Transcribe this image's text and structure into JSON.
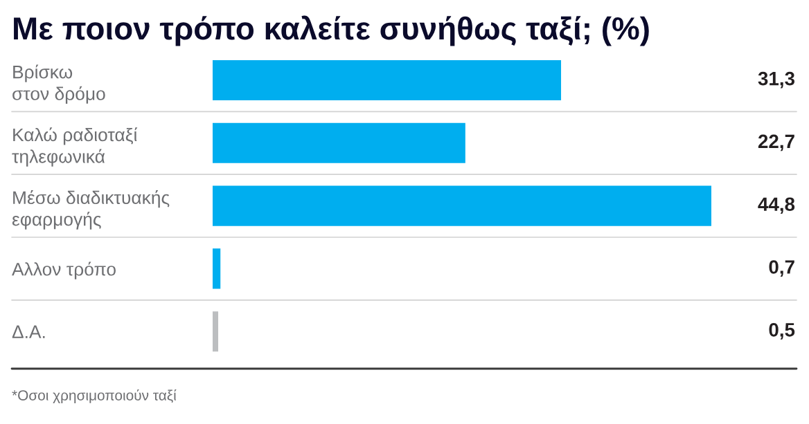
{
  "chart_data": {
    "type": "bar",
    "orientation": "horizontal",
    "title": "Με ποιον τρόπο καλείτε συνήθως ταξί; (%)",
    "categories": [
      "Βρίσκω\nστον δρόμο",
      "Καλώ ραδιοταξί\nτηλεφωνικά",
      "Μέσω διαδικτυακής\nεφαρμογής",
      "Αλλον τρόπο",
      "Δ.Α."
    ],
    "values": [
      31.3,
      22.7,
      44.8,
      0.7,
      0.5
    ],
    "colors": [
      "#00aeef",
      "#00aeef",
      "#00aeef",
      "#00aeef",
      "#bcbec0"
    ],
    "value_labels": [
      "31,3",
      "22,7",
      "44,8",
      "0,7",
      "0,5"
    ],
    "tick_labels": "y",
    "annotations": [
      "*Οσοι χρησιμοποιούν ταξί"
    ]
  }
}
